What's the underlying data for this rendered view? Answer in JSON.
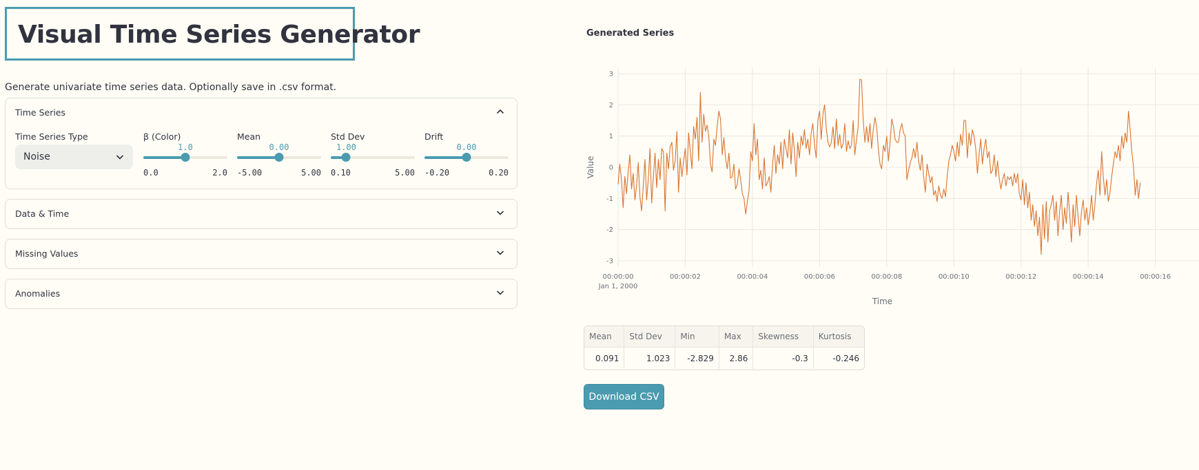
{
  "header": {
    "title": "Visual Time Series Generator",
    "subtitle": "Generate univariate time series data. Optionally save in .csv format."
  },
  "expanders": [
    {
      "label": "Time Series",
      "expanded": true,
      "type_label": "Time Series Type",
      "type_value": "Noise",
      "sliders": [
        {
          "label": "β (Color)",
          "value": "1.0",
          "min": "0.0",
          "max": "2.0",
          "fraction": 0.5
        },
        {
          "label": "Mean",
          "value": "0.00",
          "min": "-5.00",
          "max": "5.00",
          "fraction": 0.5
        },
        {
          "label": "Std Dev",
          "value": "1.00",
          "min": "0.10",
          "max": "5.00",
          "fraction": 0.184
        },
        {
          "label": "Drift",
          "value": "0.00",
          "min": "-0.20",
          "max": "0.20",
          "fraction": 0.5
        }
      ]
    },
    {
      "label": "Data & Time",
      "expanded": false
    },
    {
      "label": "Missing Values",
      "expanded": false
    },
    {
      "label": "Anomalies",
      "expanded": false
    }
  ],
  "chart_title": "Generated Series",
  "chart_data": {
    "type": "line",
    "xlabel": "Time",
    "ylabel": "Value",
    "x_tick_labels": [
      "00:00:00",
      "00:00:02",
      "00:00:04",
      "00:00:06",
      "00:00:08",
      "00:00:10",
      "00:00:12",
      "00:00:14",
      "00:00:16"
    ],
    "x_date_label": "Jan 1, 2000",
    "y_ticks": [
      3,
      2,
      1,
      0,
      -1,
      -2,
      -3
    ],
    "xlim_seconds": [
      0,
      17.3
    ],
    "ylim": [
      -3.2,
      3.2
    ],
    "grid": true,
    "line_color": "#d9742f",
    "series": [
      {
        "sample_interval_seconds": 0.05,
        "values": [
          -0.55,
          0.1,
          -0.4,
          -1.3,
          -0.3,
          -0.85,
          -0.15,
          0.4,
          -0.7,
          -0.2,
          -1.05,
          -0.6,
          0.15,
          -0.95,
          -1.4,
          -0.6,
          0.25,
          -1.05,
          -0.35,
          0.6,
          -1.15,
          -0.3,
          0.45,
          -0.65,
          0.25,
          -0.4,
          0.6,
          0.5,
          -1.4,
          0.45,
          -0.05,
          0.65,
          0.8,
          -0.1,
          0.2,
          1.15,
          -0.8,
          0.3,
          -0.3,
          0.2,
          0.6,
          -0.25,
          1.1,
          0.5,
          -0.05,
          1.3,
          0.9,
          1.6,
          0.2,
          2.4,
          0.8,
          1.7,
          1.15,
          1.35,
          1.0,
          0.1,
          -0.15,
          0.9,
          0.7,
          1.3,
          1.8,
          1.55,
          0.4,
          0.95,
          0.3,
          -0.05,
          0.45,
          -0.35,
          -0.3,
          0.1,
          -0.7,
          -0.55,
          -0.05,
          -0.4,
          -0.85,
          -1.0,
          -1.5,
          -1.1,
          -0.75,
          0.5,
          0.2,
          1.4,
          0.4,
          0.9,
          -0.4,
          -0.1,
          -0.7,
          0.3,
          -0.6,
          -0.5,
          -0.3,
          -0.8,
          0.1,
          0.7,
          -0.2,
          0.4,
          0.1,
          0.8,
          -0.05,
          0.9,
          0.6,
          0.3,
          1.2,
          0.1,
          1.1,
          0.55,
          -0.3,
          0.8,
          0.3,
          1.0,
          0.7,
          1.2,
          0.6,
          0.9,
          0.4,
          1.1,
          1.4,
          0.7,
          0.3,
          1.5,
          1.8,
          0.9,
          1.7,
          2.0,
          1.25,
          0.8,
          0.65,
          0.8,
          1.3,
          0.6,
          1.55,
          0.7,
          1.05,
          0.6,
          0.75,
          1.4,
          0.5,
          0.85,
          0.6,
          0.7,
          1.5,
          0.4,
          0.9,
          1.3,
          2.82,
          2.8,
          1.5,
          0.8,
          1.3,
          0.8,
          1.4,
          0.6,
          1.2,
          1.6,
          1.3,
          0.6,
          0.1,
          -0.05,
          0.7,
          0.5,
          1.0,
          0.2,
          0.8,
          1.55,
          1.3,
          0.9,
          0.8,
          0.8,
          1.2,
          1.4,
          1.1,
          1.0,
          -0.4,
          -0.1,
          0.15,
          0.3,
          0.6,
          0.3,
          0.8,
          0.2,
          -0.1,
          0.4,
          -0.3,
          -0.8,
          0.1,
          -0.2,
          -0.5,
          -0.3,
          -0.9,
          -0.75,
          -1.1,
          -0.6,
          -0.9,
          -1.0,
          -0.7,
          -0.95,
          -0.3,
          0.2,
          0.4,
          0.7,
          0.5,
          0.2,
          0.8,
          0.35,
          1.05,
          0.7,
          1.5,
          1.5,
          0.3,
          1.1,
          0.7,
          1.2,
          1.0,
          0.6,
          -0.2,
          0.4,
          0.9,
          0.1,
          0.6,
          0.9,
          0.3,
          0.5,
          -0.2,
          -0.1,
          0.4,
          -0.3,
          0.2,
          -0.35,
          -0.7,
          -0.4,
          -0.2,
          -0.6,
          -0.3,
          -0.4,
          -0.3,
          -0.6,
          -0.2,
          -0.5,
          -0.2,
          -0.85,
          -1.05,
          -0.4,
          -1.2,
          -0.5,
          -1.3,
          -0.8,
          -1.7,
          -1.2,
          -1.9,
          -1.4,
          -2.2,
          -1.6,
          -2.8,
          -1.2,
          -2.3,
          -1.1,
          -2.4,
          -1.4,
          -1.2,
          -0.9,
          -1.7,
          -1.1,
          -2.2,
          -1.4,
          -0.9,
          -2.0,
          -1.3,
          -1.8,
          -0.8,
          -1.5,
          -2.4,
          -1.2,
          -1.9,
          -0.9,
          -1.6,
          -2.2,
          -1.4,
          -1.05,
          -1.7,
          -1.3,
          -1.85,
          -1.5,
          -0.9,
          -1.7,
          -1.2,
          -0.5,
          -0.1,
          -0.9,
          0.5,
          -0.3,
          -0.9,
          -0.4,
          -1.1,
          -0.8,
          -0.3,
          0.1,
          0.5,
          0.3,
          0.7,
          0.2,
          1.0,
          0.6,
          1.1,
          0.8,
          1.8,
          1.2,
          0.5,
          0.0,
          -0.9,
          -0.4,
          -1.0,
          -0.5
        ]
      }
    ]
  },
  "stats": {
    "headers": [
      "Mean",
      "Std Dev",
      "Min",
      "Max",
      "Skewness",
      "Kurtosis"
    ],
    "values": [
      "0.091",
      "1.023",
      "-2.829",
      "2.86",
      "-0.3",
      "-0.246"
    ]
  },
  "download_label": "Download CSV"
}
